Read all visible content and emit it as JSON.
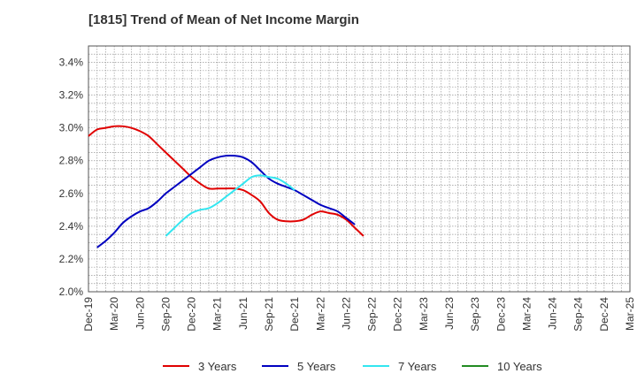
{
  "chart_data": {
    "type": "line",
    "title": "[1815]  Trend of Mean of Net Income Margin",
    "xlabel": "",
    "ylabel": "",
    "x_ticks": [
      "Dec-19",
      "Mar-20",
      "Jun-20",
      "Sep-20",
      "Dec-20",
      "Mar-21",
      "Jun-21",
      "Sep-21",
      "Dec-21",
      "Mar-22",
      "Jun-22",
      "Sep-22",
      "Dec-22",
      "Mar-23",
      "Jun-23",
      "Sep-23",
      "Dec-23",
      "Mar-24",
      "Jun-24",
      "Sep-24",
      "Dec-24",
      "Mar-25"
    ],
    "y_ticks": [
      "2.0%",
      "2.2%",
      "2.4%",
      "2.6%",
      "2.8%",
      "3.0%",
      "3.2%",
      "3.4%"
    ],
    "ylim": [
      2.0,
      3.5
    ],
    "grid": true,
    "legend_position": "bottom",
    "series": [
      {
        "name": "3 Years",
        "color": "#e00000",
        "values": [
          2.95,
          2.99,
          3.0,
          3.01,
          3.01,
          3.0,
          2.98,
          2.95,
          2.9,
          2.85,
          2.8,
          2.75,
          2.7,
          2.66,
          2.63,
          2.63,
          2.63,
          2.63,
          2.62,
          2.59,
          2.55,
          2.48,
          2.44,
          2.43,
          2.43,
          2.44,
          2.47,
          2.49,
          2.48,
          2.47,
          2.44,
          2.39,
          2.34
        ]
      },
      {
        "name": "5 Years",
        "color": "#0000c0",
        "values": [
          null,
          2.27,
          2.31,
          2.36,
          2.42,
          2.46,
          2.49,
          2.51,
          2.55,
          2.6,
          2.64,
          2.68,
          2.72,
          2.76,
          2.8,
          2.82,
          2.83,
          2.83,
          2.82,
          2.79,
          2.74,
          2.69,
          2.66,
          2.64,
          2.62,
          2.59,
          2.56,
          2.53,
          2.51,
          2.49,
          2.45,
          2.41
        ]
      },
      {
        "name": "7 Years",
        "color": "#33e6f0",
        "values": [
          null,
          null,
          null,
          null,
          null,
          null,
          null,
          null,
          null,
          2.34,
          2.39,
          2.44,
          2.48,
          2.5,
          2.51,
          2.54,
          2.58,
          2.62,
          2.66,
          2.7,
          2.71,
          2.7,
          2.69,
          2.66,
          2.62
        ]
      },
      {
        "name": "10 Years",
        "color": "#228b22",
        "values": []
      }
    ]
  }
}
